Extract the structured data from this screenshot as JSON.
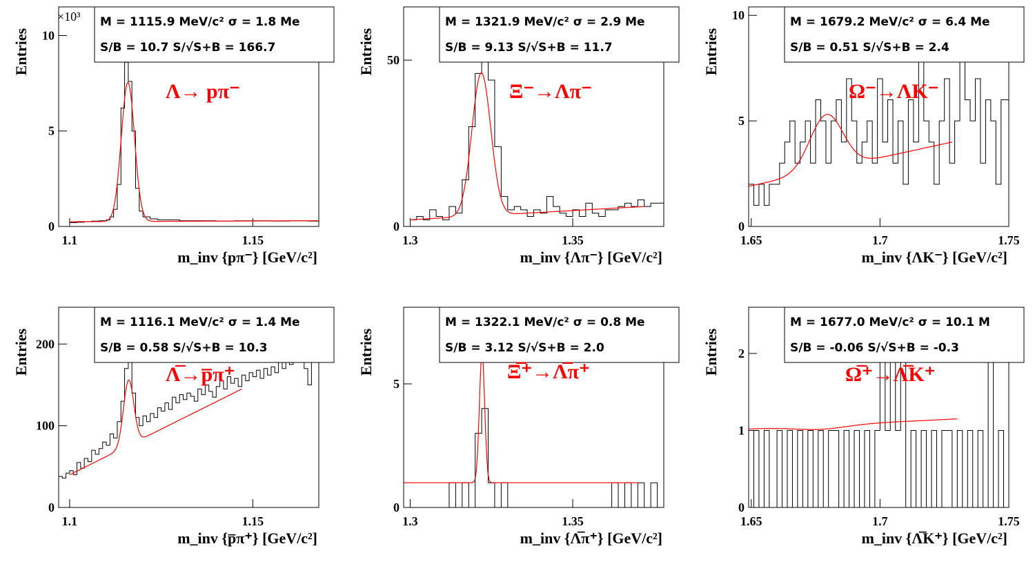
{
  "chart_data": [
    {
      "type": "histogram",
      "ylabel": "Entries",
      "xlabel": "m_inv {pπ⁻} [GeV/c²]",
      "y_multiplier": "×10³",
      "xlim": [
        1.097,
        1.168
      ],
      "ylim": [
        0,
        11.5
      ],
      "xticks": [
        1.1,
        1.15
      ],
      "yticks": [
        0,
        5,
        10
      ],
      "stats": {
        "line1": "M = 1115.9 MeV/c² σ = 1.8 Me",
        "line2": "S/B = 10.7   S/√S+B = 166.7"
      },
      "process": "Λ→ pπ⁻",
      "bins": [
        [
          1.1,
          0.2
        ],
        [
          1.102,
          0.22
        ],
        [
          1.104,
          0.25
        ],
        [
          1.106,
          0.28
        ],
        [
          1.108,
          0.3
        ],
        [
          1.11,
          0.35
        ],
        [
          1.111,
          0.5
        ],
        [
          1.112,
          0.9
        ],
        [
          1.113,
          2.2
        ],
        [
          1.114,
          6.2
        ],
        [
          1.115,
          8.6
        ],
        [
          1.116,
          7.6
        ],
        [
          1.117,
          5.0
        ],
        [
          1.118,
          2.0
        ],
        [
          1.119,
          0.8
        ],
        [
          1.12,
          0.5
        ],
        [
          1.122,
          0.4
        ],
        [
          1.124,
          0.35
        ],
        [
          1.126,
          0.35
        ],
        [
          1.13,
          0.3
        ],
        [
          1.135,
          0.3
        ],
        [
          1.14,
          0.28
        ],
        [
          1.145,
          0.3
        ],
        [
          1.15,
          0.3
        ],
        [
          1.155,
          0.28
        ],
        [
          1.16,
          0.3
        ],
        [
          1.165,
          0.28
        ]
      ],
      "fit": {
        "x_range": [
          1.1,
          1.168
        ],
        "mean": 1.1159,
        "sigma": 0.0018,
        "amp": 7.3,
        "bkg": [
          0.25,
          0.3
        ]
      }
    },
    {
      "type": "histogram",
      "ylabel": "Entries",
      "xlabel": "m_inv {Λπ⁻} [GeV/c²]",
      "xlim": [
        1.298,
        1.378
      ],
      "ylim": [
        0,
        66
      ],
      "xticks": [
        1.3,
        1.35
      ],
      "yticks": [
        0,
        50
      ],
      "stats": {
        "line1": "M = 1321.9 MeV/c² σ = 2.9 Me",
        "line2": "S/B = 9.13   S/√S+B = 11.7"
      },
      "process": "Ξ⁻→Λπ⁻",
      "bins": [
        [
          1.3,
          2
        ],
        [
          1.302,
          3
        ],
        [
          1.304,
          2
        ],
        [
          1.306,
          5
        ],
        [
          1.308,
          3
        ],
        [
          1.31,
          2
        ],
        [
          1.312,
          6
        ],
        [
          1.314,
          4
        ],
        [
          1.316,
          14
        ],
        [
          1.318,
          30
        ],
        [
          1.32,
          46
        ],
        [
          1.322,
          51
        ],
        [
          1.324,
          44
        ],
        [
          1.326,
          24
        ],
        [
          1.328,
          9
        ],
        [
          1.33,
          5
        ],
        [
          1.332,
          6
        ],
        [
          1.334,
          5
        ],
        [
          1.336,
          3
        ],
        [
          1.338,
          5
        ],
        [
          1.34,
          4
        ],
        [
          1.342,
          9
        ],
        [
          1.344,
          6
        ],
        [
          1.346,
          4
        ],
        [
          1.348,
          3
        ],
        [
          1.35,
          5
        ],
        [
          1.352,
          3
        ],
        [
          1.354,
          7
        ],
        [
          1.356,
          4
        ],
        [
          1.358,
          3
        ],
        [
          1.36,
          5
        ],
        [
          1.362,
          5
        ],
        [
          1.364,
          6
        ],
        [
          1.366,
          7
        ],
        [
          1.368,
          6
        ],
        [
          1.37,
          8
        ],
        [
          1.372,
          6
        ],
        [
          1.374,
          7
        ],
        [
          1.376,
          7
        ]
      ],
      "fit": {
        "x_range": [
          1.3,
          1.372
        ],
        "mean": 1.3219,
        "sigma": 0.0029,
        "amp": 43,
        "bkg": [
          2,
          6
        ]
      }
    },
    {
      "type": "histogram",
      "ylabel": "Entries",
      "xlabel": "m_inv {ΛK⁻} [GeV/c²]",
      "xlim": [
        1.649,
        1.75
      ],
      "ylim": [
        0,
        10.4
      ],
      "xticks": [
        1.65,
        1.7,
        1.75
      ],
      "yticks": [
        0,
        5,
        10
      ],
      "stats": {
        "line1": "M = 1679.2 MeV/c² σ = 6.4 Me",
        "line2": "S/B = 0.51   S/√S+B = 2.4"
      },
      "process": "Ω⁻→ΛK⁻",
      "bins": [
        [
          1.649,
          2
        ],
        [
          1.651,
          1
        ],
        [
          1.653,
          2
        ],
        [
          1.655,
          1
        ],
        [
          1.657,
          2
        ],
        [
          1.659,
          2
        ],
        [
          1.661,
          3
        ],
        [
          1.663,
          4
        ],
        [
          1.665,
          5
        ],
        [
          1.667,
          3
        ],
        [
          1.669,
          4
        ],
        [
          1.671,
          5
        ],
        [
          1.673,
          3
        ],
        [
          1.675,
          6
        ],
        [
          1.677,
          5
        ],
        [
          1.679,
          3
        ],
        [
          1.681,
          5
        ],
        [
          1.683,
          6
        ],
        [
          1.685,
          4
        ],
        [
          1.687,
          7
        ],
        [
          1.689,
          5
        ],
        [
          1.691,
          3
        ],
        [
          1.693,
          4
        ],
        [
          1.695,
          5
        ],
        [
          1.697,
          3
        ],
        [
          1.699,
          7
        ],
        [
          1.701,
          4
        ],
        [
          1.703,
          6
        ],
        [
          1.705,
          3
        ],
        [
          1.707,
          5
        ],
        [
          1.709,
          2
        ],
        [
          1.711,
          6
        ],
        [
          1.713,
          4
        ],
        [
          1.715,
          8
        ],
        [
          1.717,
          5
        ],
        [
          1.719,
          4
        ],
        [
          1.721,
          2
        ],
        [
          1.723,
          5
        ],
        [
          1.725,
          7
        ],
        [
          1.727,
          3
        ],
        [
          1.729,
          5
        ],
        [
          1.731,
          8
        ],
        [
          1.733,
          6
        ],
        [
          1.735,
          5
        ],
        [
          1.737,
          7
        ],
        [
          1.739,
          3
        ],
        [
          1.741,
          6
        ],
        [
          1.743,
          5
        ],
        [
          1.745,
          2
        ],
        [
          1.747,
          6
        ]
      ],
      "fit": {
        "x_range": [
          1.649,
          1.728
        ],
        "mean": 1.6792,
        "sigma": 0.0064,
        "amp": 2.6,
        "bkg": [
          1.9,
          4.0
        ]
      }
    },
    {
      "type": "histogram",
      "ylabel": "Entries",
      "xlabel": "m_inv {p̅π⁺} [GeV/c²]",
      "xlim": [
        1.097,
        1.168
      ],
      "ylim": [
        0,
        245
      ],
      "xticks": [
        1.1,
        1.15
      ],
      "yticks": [
        0,
        100,
        200
      ],
      "stats": {
        "line1": "M = 1116.1 MeV/c² σ = 1.4 Me",
        "line2": "S/B = 0.58   S/√S+B = 10.3"
      },
      "process": "Λ̅→p̅π⁺",
      "bins": [
        [
          1.097,
          38
        ],
        [
          1.098,
          36
        ],
        [
          1.099,
          42
        ],
        [
          1.1,
          45
        ],
        [
          1.101,
          40
        ],
        [
          1.102,
          55
        ],
        [
          1.103,
          48
        ],
        [
          1.104,
          60
        ],
        [
          1.105,
          56
        ],
        [
          1.106,
          70
        ],
        [
          1.107,
          65
        ],
        [
          1.108,
          72
        ],
        [
          1.109,
          80
        ],
        [
          1.11,
          76
        ],
        [
          1.111,
          90
        ],
        [
          1.112,
          85
        ],
        [
          1.113,
          105
        ],
        [
          1.114,
          130
        ],
        [
          1.115,
          170
        ],
        [
          1.116,
          178
        ],
        [
          1.117,
          140
        ],
        [
          1.118,
          110
        ],
        [
          1.119,
          100
        ],
        [
          1.12,
          112
        ],
        [
          1.121,
          105
        ],
        [
          1.122,
          115
        ],
        [
          1.123,
          110
        ],
        [
          1.124,
          122
        ],
        [
          1.125,
          118
        ],
        [
          1.126,
          128
        ],
        [
          1.127,
          120
        ],
        [
          1.128,
          135
        ],
        [
          1.129,
          128
        ],
        [
          1.13,
          138
        ],
        [
          1.131,
          132
        ],
        [
          1.132,
          140
        ],
        [
          1.133,
          136
        ],
        [
          1.134,
          130
        ],
        [
          1.135,
          145
        ],
        [
          1.136,
          138
        ],
        [
          1.137,
          150
        ],
        [
          1.138,
          142
        ],
        [
          1.139,
          135
        ],
        [
          1.14,
          148
        ],
        [
          1.141,
          155
        ],
        [
          1.142,
          145
        ],
        [
          1.143,
          160
        ],
        [
          1.144,
          152
        ],
        [
          1.145,
          158
        ],
        [
          1.146,
          148
        ],
        [
          1.147,
          162
        ],
        [
          1.148,
          155
        ],
        [
          1.149,
          165
        ],
        [
          1.15,
          160
        ],
        [
          1.151,
          168
        ],
        [
          1.152,
          158
        ],
        [
          1.153,
          170
        ],
        [
          1.154,
          162
        ],
        [
          1.155,
          172
        ],
        [
          1.156,
          165
        ],
        [
          1.157,
          178
        ],
        [
          1.158,
          170
        ],
        [
          1.159,
          180
        ],
        [
          1.16,
          175
        ],
        [
          1.161,
          188
        ],
        [
          1.162,
          178
        ],
        [
          1.163,
          185
        ],
        [
          1.164,
          170
        ],
        [
          1.165,
          150
        ],
        [
          1.166,
          180
        ]
      ],
      "fit": {
        "x_range": [
          1.1,
          1.147
        ],
        "mean": 1.1161,
        "sigma": 0.0014,
        "amp": 80,
        "bkg": [
          40,
          145
        ]
      }
    },
    {
      "type": "histogram",
      "ylabel": "Entries",
      "xlabel": "m_inv {Λ̅π⁺} [GeV/c²]",
      "xlim": [
        1.298,
        1.378
      ],
      "ylim": [
        0,
        8.1
      ],
      "xticks": [
        1.3,
        1.35
      ],
      "yticks": [
        0,
        5
      ],
      "stats": {
        "line1": "M = 1322.1 MeV/c² σ = 0.8 Me",
        "line2": "S/B = 3.12   S/√S+B = 2.0"
      },
      "process": "Ξ̅⁺→Λ̅π⁺",
      "bins": [
        [
          1.298,
          0
        ],
        [
          1.312,
          1
        ],
        [
          1.314,
          0
        ],
        [
          1.316,
          1
        ],
        [
          1.318,
          0
        ],
        [
          1.32,
          3
        ],
        [
          1.322,
          4
        ],
        [
          1.324,
          1
        ],
        [
          1.326,
          0
        ],
        [
          1.328,
          1
        ],
        [
          1.33,
          0
        ],
        [
          1.362,
          1
        ],
        [
          1.364,
          0
        ],
        [
          1.366,
          1
        ],
        [
          1.368,
          0
        ],
        [
          1.37,
          1
        ],
        [
          1.372,
          0
        ],
        [
          1.374,
          1
        ],
        [
          1.376,
          0
        ]
      ],
      "fit": {
        "x_range": [
          1.298,
          1.37
        ],
        "mean": 1.3221,
        "sigma": 0.0008,
        "amp": 5.3,
        "bkg": [
          1,
          1
        ]
      }
    },
    {
      "type": "histogram",
      "ylabel": "Entries",
      "xlabel": "m_inv {Λ̅K⁺} [GeV/c²]",
      "xlim": [
        1.649,
        1.75
      ],
      "ylim": [
        0,
        2.6
      ],
      "xticks": [
        1.65,
        1.7,
        1.75
      ],
      "yticks": [
        0,
        1,
        2
      ],
      "stats": {
        "line1": "M = 1677.0 MeV/c² σ = 10.1 M",
        "line2": "S/B = -0.06   S/√S+B = -0.3"
      },
      "process": "Ω̅⁺→Λ̅K⁺",
      "bins": [
        [
          1.649,
          0
        ],
        [
          1.651,
          1
        ],
        [
          1.653,
          0
        ],
        [
          1.655,
          1
        ],
        [
          1.657,
          0
        ],
        [
          1.66,
          1
        ],
        [
          1.662,
          0
        ],
        [
          1.664,
          1
        ],
        [
          1.666,
          0
        ],
        [
          1.668,
          1
        ],
        [
          1.67,
          0
        ],
        [
          1.672,
          1
        ],
        [
          1.674,
          0
        ],
        [
          1.676,
          1
        ],
        [
          1.678,
          0
        ],
        [
          1.68,
          1
        ],
        [
          1.684,
          0
        ],
        [
          1.686,
          1
        ],
        [
          1.688,
          0
        ],
        [
          1.69,
          1
        ],
        [
          1.692,
          0
        ],
        [
          1.694,
          1
        ],
        [
          1.696,
          0
        ],
        [
          1.698,
          1
        ],
        [
          1.7,
          2
        ],
        [
          1.702,
          1
        ],
        [
          1.704,
          2
        ],
        [
          1.706,
          1
        ],
        [
          1.708,
          2
        ],
        [
          1.71,
          0
        ],
        [
          1.712,
          1
        ],
        [
          1.714,
          0
        ],
        [
          1.716,
          1
        ],
        [
          1.718,
          0
        ],
        [
          1.72,
          1
        ],
        [
          1.722,
          0
        ],
        [
          1.724,
          1
        ],
        [
          1.728,
          0
        ],
        [
          1.73,
          1
        ],
        [
          1.732,
          0
        ],
        [
          1.734,
          1
        ],
        [
          1.736,
          0
        ],
        [
          1.738,
          1
        ],
        [
          1.74,
          0
        ],
        [
          1.742,
          2
        ],
        [
          1.744,
          0
        ],
        [
          1.746,
          1
        ],
        [
          1.748,
          0
        ]
      ],
      "fit": {
        "x_range": [
          1.649,
          1.73
        ],
        "mean": 1.677,
        "sigma": 0.0101,
        "amp": -0.05,
        "bkg": [
          1.02,
          1.15
        ]
      }
    }
  ]
}
